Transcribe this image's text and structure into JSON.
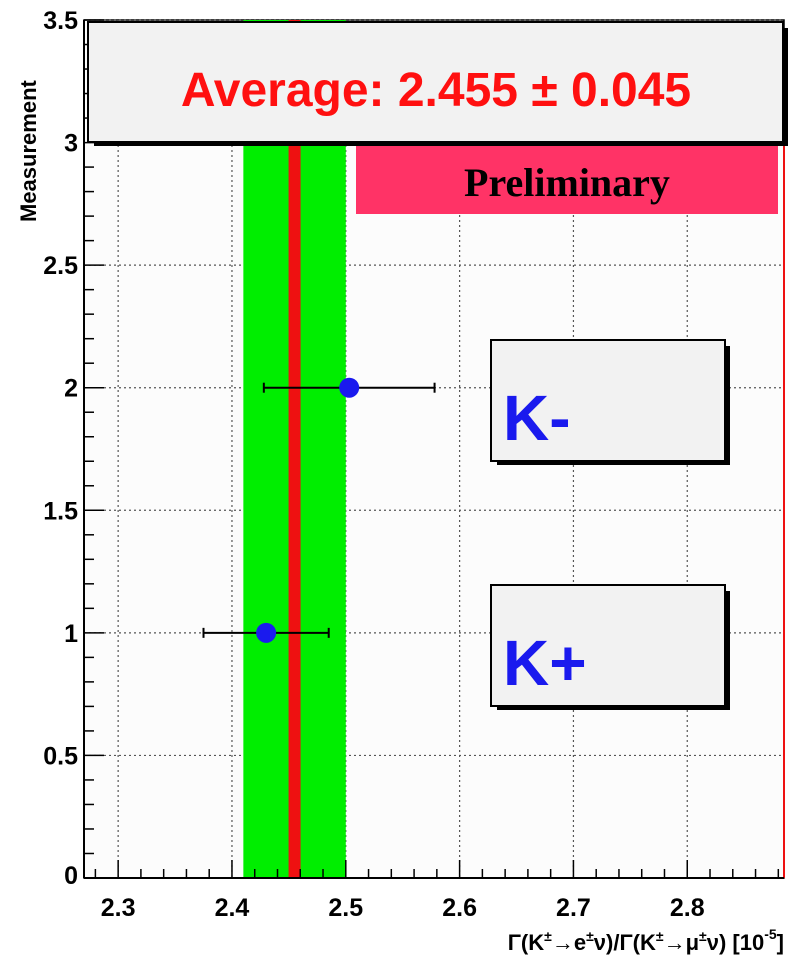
{
  "chart_data": {
    "type": "scatter",
    "xlabel": "Γ(K±→e±ν)/Γ(K±→μ±ν) [10⁻⁵]",
    "xlabel_parts": {
      "pre": "Γ(K",
      "sup1": "±",
      "mid1": "→e",
      "sup2": "±",
      "mid2": "ν)/Γ(K",
      "sup3": "±",
      "mid3": "→μ",
      "sup4": "±",
      "mid4": "ν) [10",
      "sup5": "-5",
      "post": "]"
    },
    "ylabel": "Measurement",
    "xlim": [
      2.27,
      2.885
    ],
    "ylim": [
      0,
      3.5
    ],
    "x_ticks": [
      "2.3",
      "2.4",
      "2.5",
      "2.6",
      "2.7",
      "2.8"
    ],
    "y_ticks": [
      "0",
      "0.5",
      "1",
      "1.5",
      "2",
      "2.5",
      "3",
      "3.5"
    ],
    "grid": true,
    "points": [
      {
        "label": "K+",
        "x": 2.43,
        "y": 1,
        "xerr_low": 2.375,
        "xerr_high": 2.485
      },
      {
        "label": "K-",
        "x": 2.503,
        "y": 2,
        "xerr_low": 2.428,
        "xerr_high": 2.578
      }
    ],
    "average": {
      "value": 2.455,
      "error": 0.045
    },
    "average_text": "Average: 2.455 ± 0.045",
    "preliminary_text": "Preliminary",
    "point_labels": [
      "K-",
      "K+"
    ],
    "colors": {
      "band": "#00ee00",
      "average_line": "#ee1111",
      "points": "#1a1aee",
      "preliminary_box": "#ff3366",
      "average_text": "#ff1010",
      "frame_fill": "#fcfcfc"
    }
  }
}
